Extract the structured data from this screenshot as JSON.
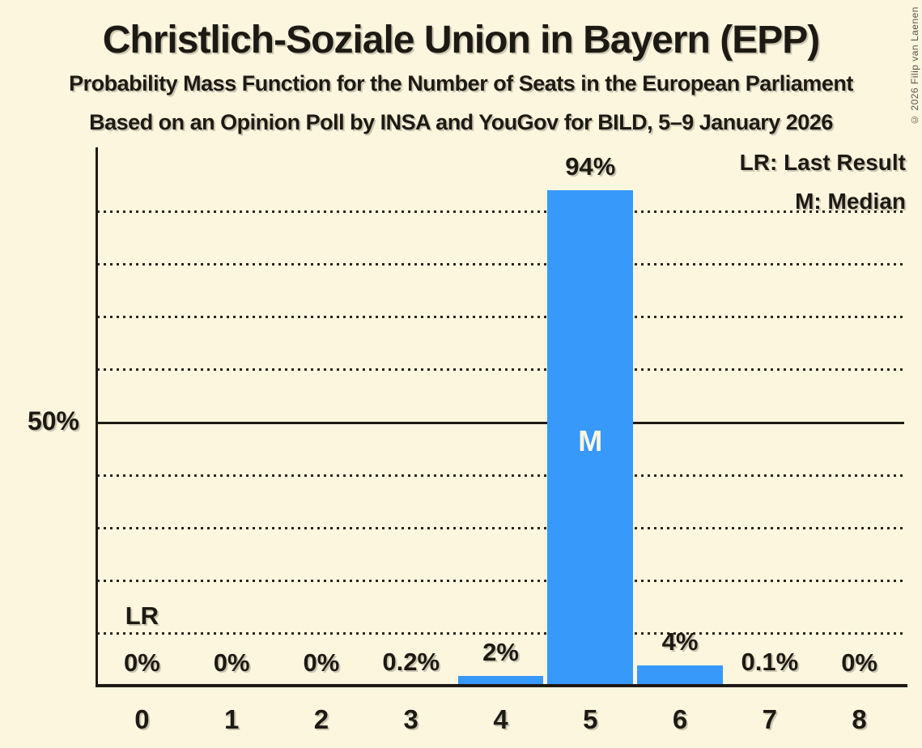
{
  "title": "Christlich-Soziale Union in Bayern (EPP)",
  "subtitle1": "Probability Mass Function for the Number of Seats in the European Parliament",
  "subtitle2": "Based on an Opinion Poll by INSA and YouGov for BILD, 5–9 January 2026",
  "copyright": "© 2026 Filip van Laenen",
  "legend": {
    "last_result": "LR: Last Result",
    "median": "M: Median"
  },
  "y_axis": {
    "label_50": "50%"
  },
  "colors": {
    "background": "#FDF6DF",
    "bar": "#3799FA",
    "text": "#1d1a14",
    "copyright": "#5a554b"
  },
  "chart_data": {
    "type": "bar",
    "title": "Christlich-Soziale Union in Bayern (EPP)",
    "categories": [
      "0",
      "1",
      "2",
      "3",
      "4",
      "5",
      "6",
      "7",
      "8"
    ],
    "values": [
      0,
      0,
      0,
      0.2,
      2,
      94,
      4,
      0.1,
      0
    ],
    "value_labels": [
      "0%",
      "0%",
      "0%",
      "0.2%",
      "2%",
      "94%",
      "4%",
      "0.1%",
      "0%"
    ],
    "ylim": [
      0,
      102
    ],
    "ytick_labels": [
      "50%"
    ],
    "gridlines": {
      "interval_pct": 10,
      "style": "dotted",
      "solid_at_pct": 50,
      "range_pct": [
        10,
        90
      ]
    },
    "median": {
      "category": "5",
      "label": "M"
    },
    "last_result": {
      "category": "0",
      "label": "LR"
    },
    "bar_color": "#3799FA",
    "legend_position": "top-right"
  }
}
